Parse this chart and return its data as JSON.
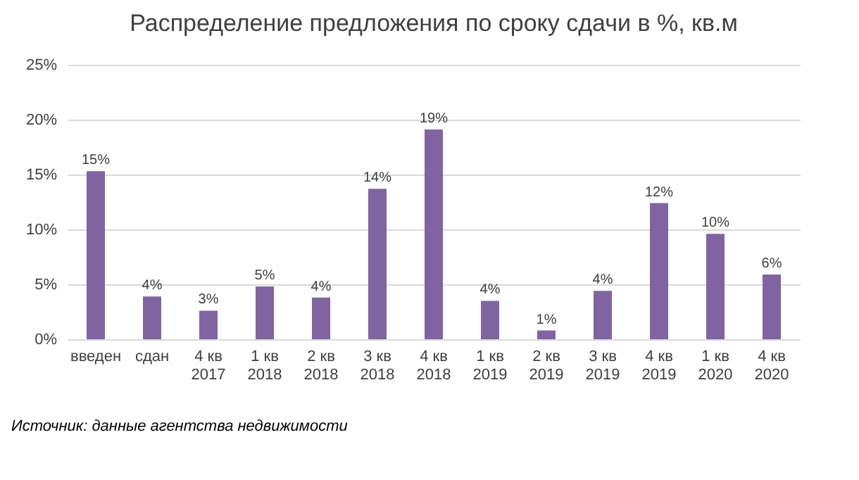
{
  "chart_data": {
    "type": "bar",
    "title": "Распределение предложения по сроку сдачи в %, кв.м",
    "categories": [
      "введен",
      "сдан",
      "4 кв\n2017",
      "1 кв\n2018",
      "2 кв\n2018",
      "3 кв\n2018",
      "4 кв\n2018",
      "1 кв\n2019",
      "2 кв\n2019",
      "3 кв\n2019",
      "4 кв\n2019",
      "1 кв\n2020",
      "4 кв\n2020"
    ],
    "values": [
      15.3,
      3.9,
      2.6,
      4.8,
      3.8,
      13.7,
      19.1,
      3.5,
      0.8,
      4.4,
      12.4,
      9.6,
      5.9
    ],
    "value_labels": [
      "15%",
      "4%",
      "3%",
      "5%",
      "4%",
      "14%",
      "19%",
      "4%",
      "1%",
      "4%",
      "12%",
      "10%",
      "6%"
    ],
    "color": "#8064a2",
    "ylim": [
      0,
      25
    ],
    "yticks": [
      {
        "value": 0,
        "label": "0%"
      },
      {
        "value": 5,
        "label": "5%"
      },
      {
        "value": 10,
        "label": "10%"
      },
      {
        "value": 15,
        "label": "15%"
      },
      {
        "value": 20,
        "label": "20%"
      },
      {
        "value": 25,
        "label": "25%"
      }
    ],
    "grid": "y",
    "annotations": [
      "Источник: данные агентства недвижимости"
    ]
  }
}
